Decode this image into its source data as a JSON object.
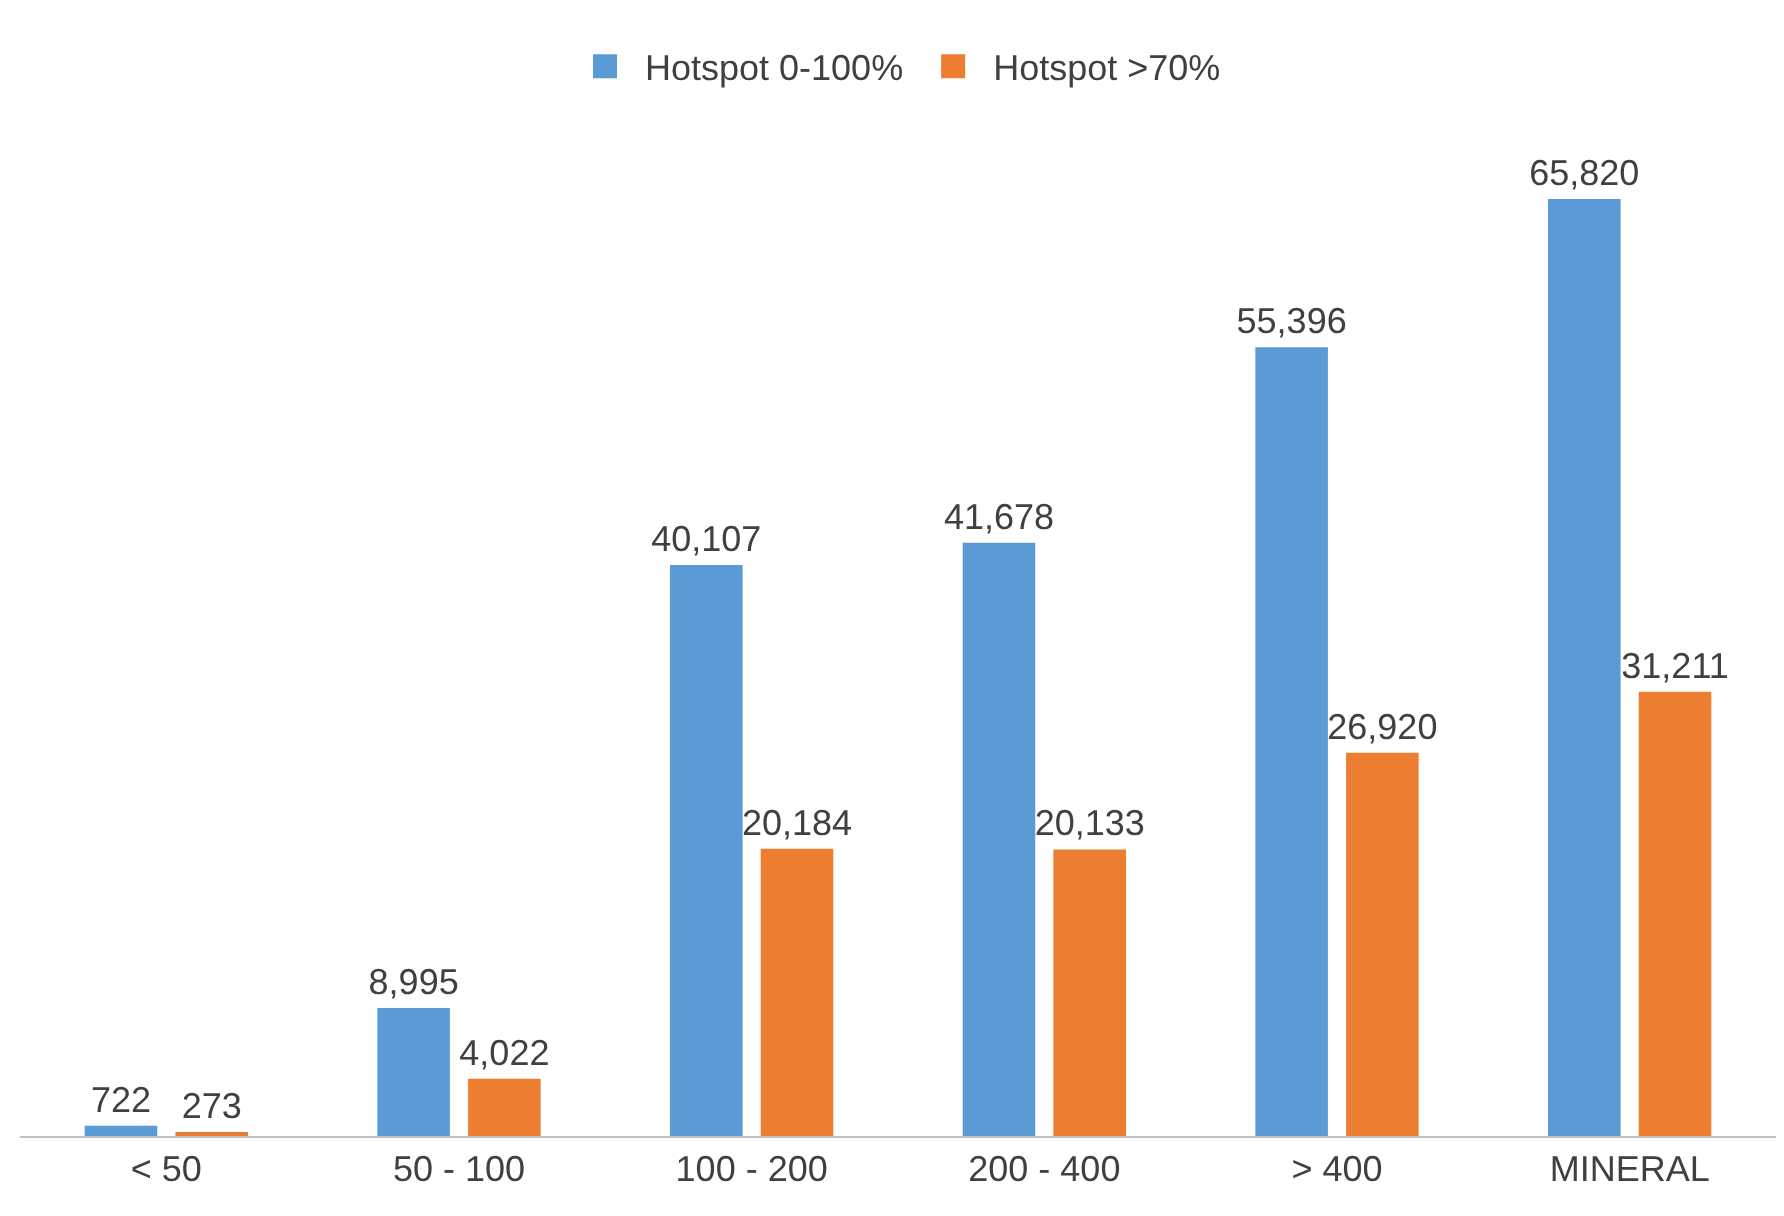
{
  "chart_data": {
    "type": "bar",
    "categories": [
      "< 50",
      "50 - 100",
      "100 - 200",
      "200 - 400",
      "> 400",
      "MINERAL"
    ],
    "series": [
      {
        "name": "Hotspot 0-100%",
        "color": "#5b9bd5",
        "values": [
          722,
          8995,
          40107,
          41678,
          55396,
          65820
        ],
        "value_labels": [
          "722",
          "8,995",
          "40,107",
          "41,678",
          "55,396",
          "65,820"
        ]
      },
      {
        "name": "Hotspot >70%",
        "color": "#ed7d31",
        "values": [
          273,
          4022,
          20184,
          20133,
          26920,
          31211
        ],
        "value_labels": [
          "273",
          "4,022",
          "20,184",
          "20,133",
          "26,920",
          "31,211"
        ]
      }
    ],
    "legend": "top",
    "grid": false
  }
}
